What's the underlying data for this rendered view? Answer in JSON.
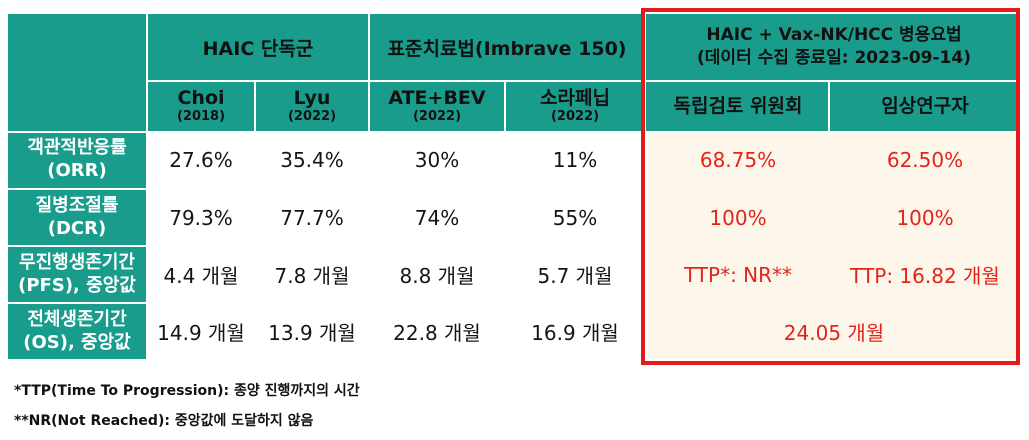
{
  "header": {
    "group1": "HAIC 단독군",
    "group2": "표준치료법(Imbrave 150)",
    "group3_line1": "HAIC + Vax-NK/HCC 병용요법",
    "group3_line2": "(데이터 수집 종료일: 2023-09-14)"
  },
  "columns": [
    {
      "name": "Choi",
      "year": "(2018)"
    },
    {
      "name": "Lyu",
      "year": "(2022)"
    },
    {
      "name": "ATE+BEV",
      "year": "(2022)"
    },
    {
      "name": "소라페닙",
      "year": "(2022)"
    },
    {
      "name": "독립검토 위원회"
    },
    {
      "name": "임상연구자"
    }
  ],
  "rows": [
    {
      "label1": "객관적반응률",
      "label2": "(ORR)",
      "values": [
        "27.6%",
        "35.4%",
        "30%",
        "11%",
        "68.75%",
        "62.50%"
      ]
    },
    {
      "label1": "질병조절률",
      "label2": "(DCR)",
      "values": [
        "79.3%",
        "77.7%",
        "74%",
        "55%",
        "100%",
        "100%"
      ]
    },
    {
      "label1": "무진행생존기간",
      "label2": "(PFS), 중앙값",
      "values": [
        "4.4 개월",
        "7.8 개월",
        "8.8 개월",
        "5.7 개월",
        "TTP*: NR**",
        "TTP: 16.82 개월"
      ]
    },
    {
      "label1": "전체생존기간",
      "label2": "(OS), 중앙값",
      "values": [
        "14.9 개월",
        "13.9 개월",
        "22.8 개월",
        "16.9 개월"
      ],
      "merged": "24.05 개월"
    }
  ],
  "footnotes": [
    "*TTP(Time To Progression): 종양 진행까지의 시간",
    "**NR(Not Reached): 중앙값에 도달하지 않음"
  ],
  "colors": {
    "teal": "#1a9c8d",
    "highlight_bg": "#fdf6ea",
    "highlight_text": "#e3241b",
    "frame": "#e51b1b"
  }
}
